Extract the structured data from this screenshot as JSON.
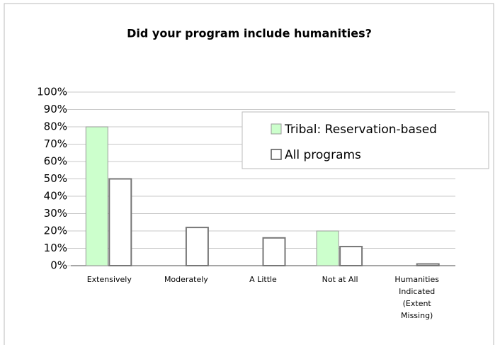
{
  "chart_data": {
    "type": "bar",
    "title": "Did your program include humanities?",
    "categories": [
      "Extensively",
      "Moderately",
      "A Little",
      "Not at All",
      "Humanities Indicated (Extent Missing)"
    ],
    "series": [
      {
        "name": "Tribal: Reservation-based",
        "color": "#ccffcc",
        "values": [
          80,
          0,
          0,
          20,
          0
        ]
      },
      {
        "name": "All programs",
        "color": "#ffffff",
        "values": [
          50,
          22,
          16,
          11,
          1
        ]
      }
    ],
    "ylim": [
      0,
      100
    ],
    "yticks": [
      {
        "value": 0,
        "label": "0%"
      },
      {
        "value": 10,
        "label": "10%"
      },
      {
        "value": 20,
        "label": "20%"
      },
      {
        "value": 30,
        "label": "30%"
      },
      {
        "value": 40,
        "label": "40%"
      },
      {
        "value": 50,
        "label": "50%"
      },
      {
        "value": 60,
        "label": "60%"
      },
      {
        "value": 70,
        "label": "70%"
      },
      {
        "value": 80,
        "label": "80%"
      },
      {
        "value": 90,
        "label": "90%"
      },
      {
        "value": 100,
        "label": "100%"
      }
    ],
    "grid": true,
    "legend": "upper right"
  }
}
